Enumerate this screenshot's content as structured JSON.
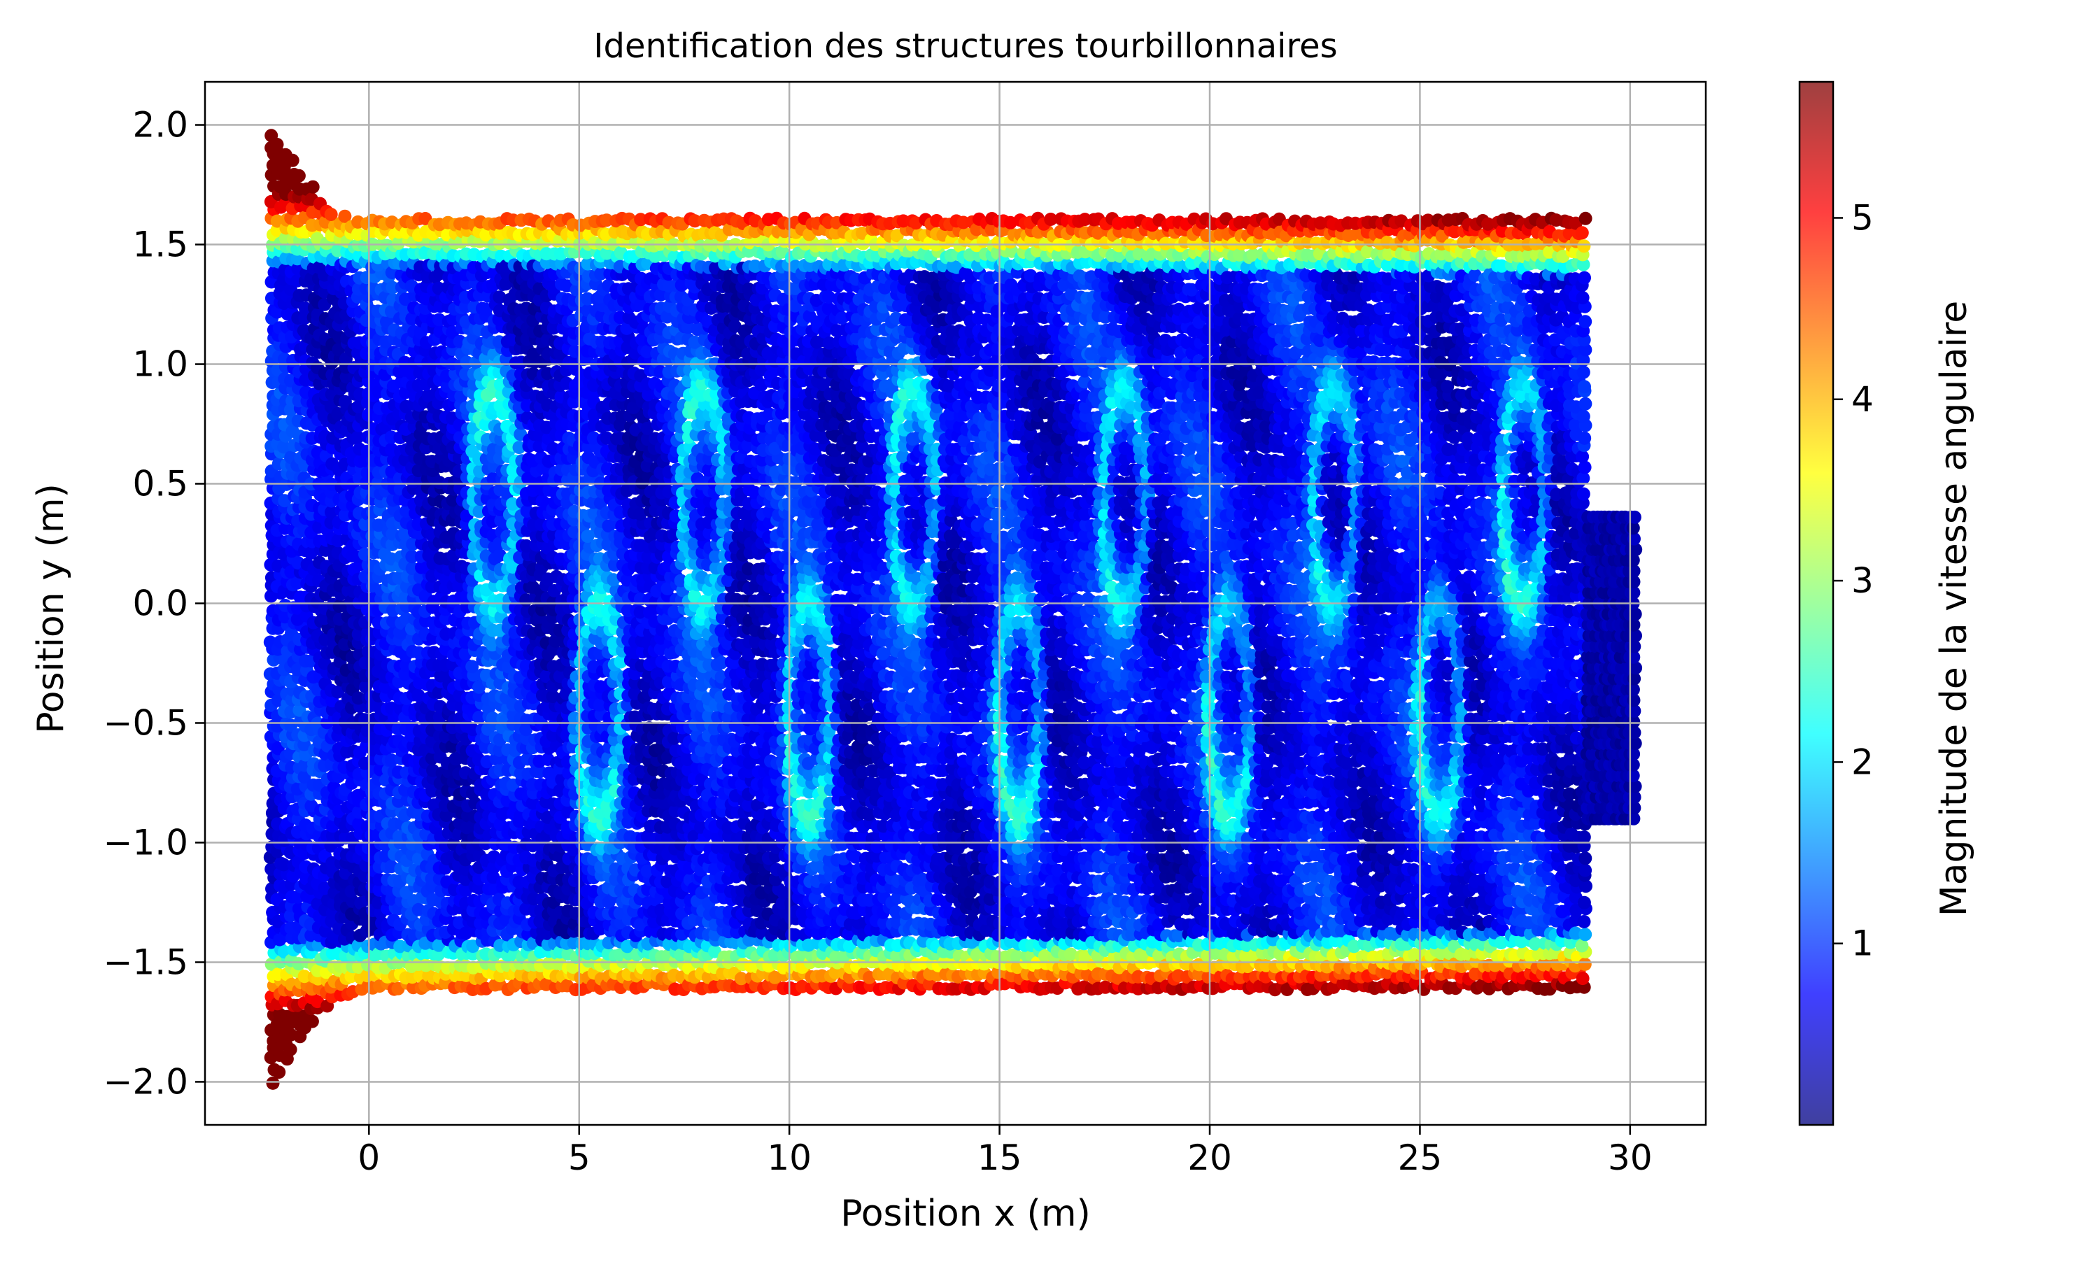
{
  "chart_data": {
    "type": "scatter",
    "title": "Identification des structures tourbillonnaires",
    "xlabel": "Position x (m)",
    "ylabel": "Position y (m)",
    "xlim": [
      -3.9,
      31.8
    ],
    "ylim": [
      -2.18,
      2.18
    ],
    "xticks": [
      0,
      5,
      10,
      15,
      20,
      25,
      30
    ],
    "xtick_labels": [
      "0",
      "5",
      "10",
      "15",
      "20",
      "25",
      "30"
    ],
    "yticks": [
      2.0,
      1.5,
      1.0,
      0.5,
      0.0,
      -0.5,
      -1.0,
      -1.5,
      -2.0
    ],
    "ytick_labels": [
      "2.0",
      "1.5",
      "1.0",
      "0.5",
      "0.0",
      "−0.5",
      "−1.0",
      "−1.5",
      "−2.0"
    ],
    "grid": true,
    "colormap": "jet",
    "colorbar": {
      "label": "Magnitude de la vitesse angulaire",
      "range": [
        0.0,
        5.75
      ],
      "ticks": [
        1,
        2,
        3,
        4,
        5
      ],
      "tick_labels": [
        "1",
        "2",
        "3",
        "4",
        "5"
      ]
    },
    "field": {
      "domain_x": [
        -2.3,
        29.0
      ],
      "half_height": 1.6,
      "inlet_x": -2.3,
      "inlet_y_range": [
        -2.0,
        2.0
      ],
      "wall_value_range": [
        3.5,
        5.7
      ],
      "core_value_range": [
        0.2,
        1.2
      ],
      "vortex_street_x": [
        3.0,
        5.5,
        8.0,
        10.5,
        13.0,
        15.5,
        18.0,
        20.5,
        23.0,
        25.5,
        27.5
      ],
      "wake_blob": {
        "x_range": [
          29.0,
          30.2
        ],
        "y_range": [
          -0.9,
          0.4
        ]
      }
    },
    "colors": {
      "jet": [
        "#00007f",
        "#0000ff",
        "#007fff",
        "#00ffff",
        "#7fff7f",
        "#ffff00",
        "#ff7f00",
        "#ff0000",
        "#7f0000"
      ],
      "grid": "#b0b0b0",
      "axes": "#000000"
    }
  }
}
